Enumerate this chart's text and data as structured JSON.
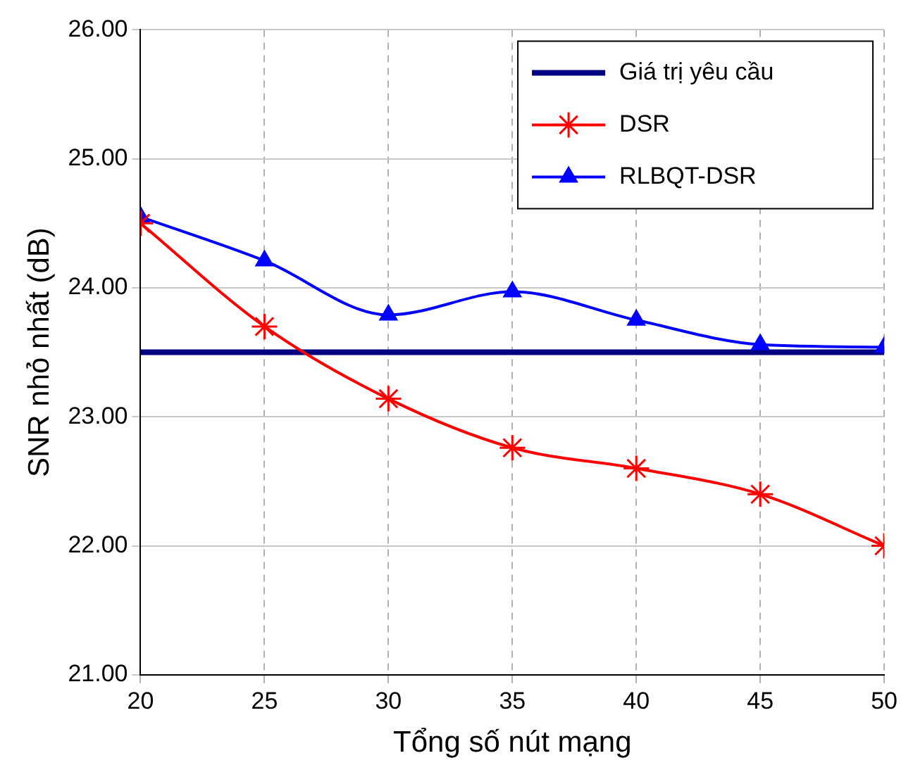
{
  "chart_data": {
    "type": "line",
    "xlabel": "Tổng số nút mạng",
    "ylabel": "SNR nhỏ nhất (dB)",
    "x": [
      20,
      25,
      30,
      35,
      40,
      45,
      50
    ],
    "series": [
      {
        "name": "DSR",
        "color": "#ff0000",
        "marker": "cross",
        "values": [
          24.5,
          23.7,
          23.14,
          22.76,
          22.6,
          22.4,
          22.0
        ]
      },
      {
        "name": "RLBQT-DSR",
        "color": "#0000ff",
        "marker": "triangle",
        "values": [
          24.55,
          24.21,
          23.79,
          23.97,
          23.75,
          23.56,
          23.54
        ]
      }
    ],
    "ref_lines": [
      {
        "axis": "y",
        "value": 23.5,
        "label": "Giá trị yêu cầu",
        "color": "#000080"
      }
    ],
    "xlim": [
      20,
      50
    ],
    "xticks": [
      20,
      25,
      30,
      35,
      40,
      45,
      50
    ],
    "ylim": [
      21,
      26
    ],
    "yticks": [
      {
        "value": 21,
        "label": "21.00"
      },
      {
        "value": 22,
        "label": "22.00"
      },
      {
        "value": 23,
        "label": "23.00"
      },
      {
        "value": 24,
        "label": "24.00"
      },
      {
        "value": 25,
        "label": "25.00"
      },
      {
        "value": 26,
        "label": "26.00"
      }
    ],
    "grid": true,
    "legend": "top right",
    "line_style": "solid"
  }
}
